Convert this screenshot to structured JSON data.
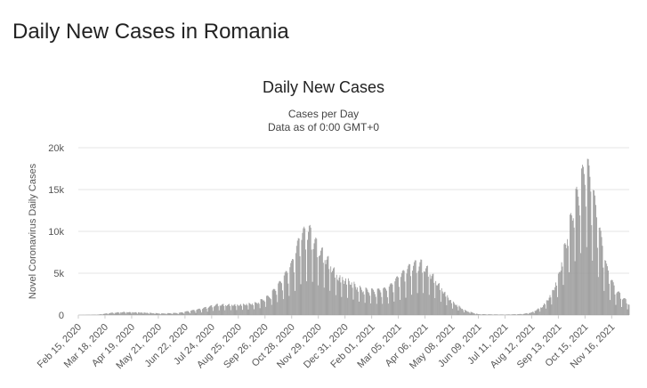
{
  "page": {
    "title": "Daily New Cases in Romania"
  },
  "chart_data": {
    "type": "bar",
    "title": "Daily New Cases",
    "subtitle": [
      "Cases per Day",
      "Data as of 0:00 GMT+0"
    ],
    "xlabel": "",
    "ylabel": "Novel Coronavirus Daily Cases",
    "ylim": [
      0,
      20000
    ],
    "y_ticks": [
      0,
      5000,
      10000,
      15000,
      20000
    ],
    "y_tick_labels": [
      "0",
      "5k",
      "10k",
      "15k",
      "20k"
    ],
    "x_range": [
      "2020-02-15",
      "2021-12-07"
    ],
    "x_tick_labels": [
      "Feb 15, 2020",
      "Mar 18, 2020",
      "Apr 19, 2020",
      "May 21, 2020",
      "Jun 22, 2020",
      "Jul 24, 2020",
      "Aug 25, 2020",
      "Sep 26, 2020",
      "Oct 28, 2020",
      "Nov 29, 2020",
      "Dec 31, 2020",
      "Feb 01, 2021",
      "Mar 05, 2021",
      "Apr 06, 2021",
      "May 08, 2021",
      "Jun 09, 2021",
      "Jul 11, 2021",
      "Aug 12, 2021",
      "Sep 13, 2021",
      "Oct 15, 2021",
      "Nov 16, 2021"
    ],
    "grid": true,
    "bar_color": "#999999",
    "series_trend": [
      {
        "x": "2020-02-15",
        "y": 0
      },
      {
        "x": "2020-03-10",
        "y": 50
      },
      {
        "x": "2020-03-25",
        "y": 250
      },
      {
        "x": "2020-04-10",
        "y": 350
      },
      {
        "x": "2020-05-01",
        "y": 300
      },
      {
        "x": "2020-05-25",
        "y": 180
      },
      {
        "x": "2020-06-15",
        "y": 250
      },
      {
        "x": "2020-07-10",
        "y": 700
      },
      {
        "x": "2020-07-30",
        "y": 1200
      },
      {
        "x": "2020-08-25",
        "y": 1200
      },
      {
        "x": "2020-09-15",
        "y": 1400
      },
      {
        "x": "2020-10-01",
        "y": 2200
      },
      {
        "x": "2020-10-15",
        "y": 3800
      },
      {
        "x": "2020-10-28",
        "y": 5800
      },
      {
        "x": "2020-11-08",
        "y": 9200
      },
      {
        "x": "2020-11-18",
        "y": 9800
      },
      {
        "x": "2020-11-29",
        "y": 7800
      },
      {
        "x": "2020-12-10",
        "y": 6500
      },
      {
        "x": "2020-12-22",
        "y": 4500
      },
      {
        "x": "2021-01-05",
        "y": 4000
      },
      {
        "x": "2021-01-20",
        "y": 3000
      },
      {
        "x": "2021-02-05",
        "y": 2800
      },
      {
        "x": "2021-02-20",
        "y": 3000
      },
      {
        "x": "2021-03-05",
        "y": 4300
      },
      {
        "x": "2021-03-22",
        "y": 5800
      },
      {
        "x": "2021-04-01",
        "y": 6000
      },
      {
        "x": "2021-04-12",
        "y": 5000
      },
      {
        "x": "2021-04-25",
        "y": 3200
      },
      {
        "x": "2021-05-08",
        "y": 1600
      },
      {
        "x": "2021-05-25",
        "y": 500
      },
      {
        "x": "2021-06-09",
        "y": 100
      },
      {
        "x": "2021-07-11",
        "y": 50
      },
      {
        "x": "2021-08-01",
        "y": 120
      },
      {
        "x": "2021-08-12",
        "y": 300
      },
      {
        "x": "2021-08-25",
        "y": 1000
      },
      {
        "x": "2021-09-05",
        "y": 2500
      },
      {
        "x": "2021-09-13",
        "y": 4500
      },
      {
        "x": "2021-09-22",
        "y": 8500
      },
      {
        "x": "2021-10-01",
        "y": 12500
      },
      {
        "x": "2021-10-10",
        "y": 15500
      },
      {
        "x": "2021-10-17",
        "y": 17500
      },
      {
        "x": "2021-10-24",
        "y": 14500
      },
      {
        "x": "2021-11-01",
        "y": 10000
      },
      {
        "x": "2021-11-10",
        "y": 5500
      },
      {
        "x": "2021-11-20",
        "y": 3000
      },
      {
        "x": "2021-11-30",
        "y": 2000
      },
      {
        "x": "2021-12-07",
        "y": 1300
      }
    ]
  }
}
